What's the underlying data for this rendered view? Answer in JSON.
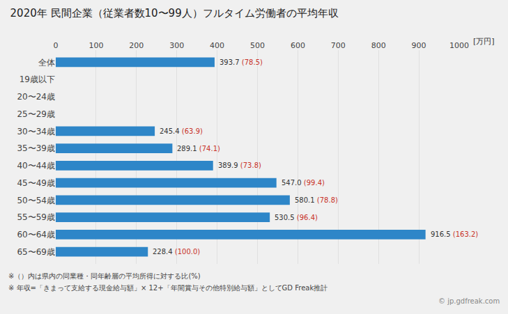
{
  "chart_data": {
    "type": "bar",
    "orientation": "horizontal",
    "title": "2020年 民間企業（従業者数10〜99人）フルタイム労働者の平均年収",
    "xlabel": "[万円]",
    "categories": [
      "全体",
      "19歳以下",
      "20〜24歳",
      "25〜29歳",
      "30〜34歳",
      "35〜39歳",
      "40〜44歳",
      "45〜49歳",
      "50〜54歳",
      "55〜59歳",
      "60〜64歳",
      "65〜69歳"
    ],
    "values": [
      393.7,
      null,
      null,
      null,
      245.4,
      289.1,
      389.9,
      547.0,
      580.1,
      530.5,
      916.5,
      228.4
    ],
    "value_labels": [
      "393.7",
      null,
      null,
      null,
      "245.4",
      "289.1",
      "389.9",
      "547.0",
      "580.1",
      "530.5",
      "916.5",
      "228.4"
    ],
    "ratios": [
      78.5,
      null,
      null,
      null,
      63.9,
      74.1,
      73.8,
      99.4,
      78.8,
      96.4,
      163.2,
      100.0
    ],
    "ratio_labels": [
      "(78.5)",
      null,
      null,
      null,
      "(63.9)",
      "(74.1)",
      "(73.8)",
      "(99.4)",
      "(78.8)",
      "(96.4)",
      "(163.2)",
      "(100.0)"
    ],
    "color": "#2E86C8",
    "value_label_color": "#333333",
    "ratio_color": "#C83228",
    "background_color": "#F0F0F0",
    "data_labels": true,
    "grid": true,
    "xlim": [
      0,
      1000
    ],
    "xticks": [
      0,
      100,
      200,
      300,
      400,
      500,
      600,
      700,
      800,
      900,
      1000
    ],
    "footnotes": [
      "※（）内は県内の同業種・同年齢層の平均所得に対する比(%)",
      "※ 年収=「きまって支給する現金給与額」× 12+「年間賞与その他特別給与額」としてGD Freak推計"
    ],
    "watermark": "© jp.gdfreak.com"
  }
}
